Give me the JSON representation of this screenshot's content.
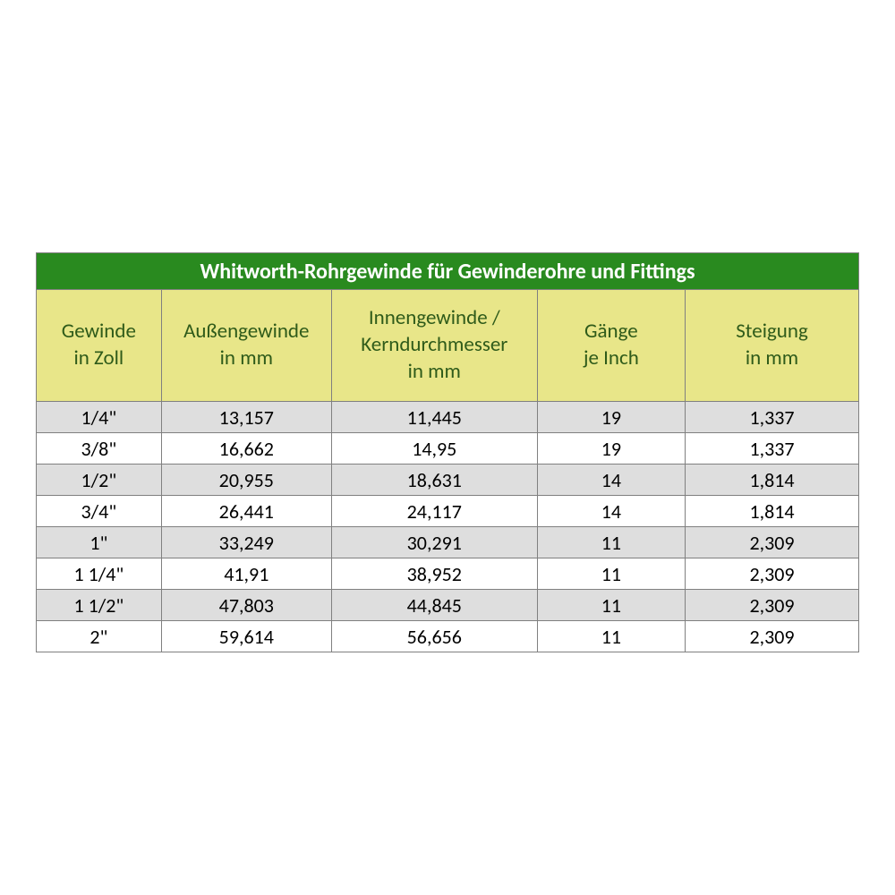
{
  "table": {
    "title": "Whitworth-Rohrgewinde für Gewinderohre und Fittings",
    "title_bg": "#298a1f",
    "title_color": "#ffffff",
    "header_bg": "#e8e689",
    "header_color": "#2f5b1a",
    "row_odd_bg": "#dedede",
    "row_even_bg": "#ffffff",
    "border_color": "#808080",
    "font_family": "Calibri",
    "title_fontsize": 24,
    "header_fontsize": 23,
    "cell_fontsize": 22,
    "column_widths_pct": [
      15.2,
      20.7,
      25.0,
      18.0,
      21.1
    ],
    "columns": [
      {
        "line1": "Gewinde",
        "line2": "in Zoll"
      },
      {
        "line1": "Außengewinde",
        "line2": "in mm"
      },
      {
        "line1": "Innengewinde /",
        "line2": "Kerndurchmesser",
        "line3": "in mm"
      },
      {
        "line1": "Gänge",
        "line2": "je Inch"
      },
      {
        "line1": "Steigung",
        "line2": "in mm"
      }
    ],
    "rows": [
      [
        "1/4\"",
        "13,157",
        "11,445",
        "19",
        "1,337"
      ],
      [
        "3/8\"",
        "16,662",
        "14,95",
        "19",
        "1,337"
      ],
      [
        "1/2\"",
        "20,955",
        "18,631",
        "14",
        "1,814"
      ],
      [
        "3/4\"",
        "26,441",
        "24,117",
        "14",
        "1,814"
      ],
      [
        "1\"",
        "33,249",
        "30,291",
        "11",
        "2,309"
      ],
      [
        "1 1/4\"",
        "41,91",
        "38,952",
        "11",
        "2,309"
      ],
      [
        "1 1/2\"",
        "47,803",
        "44,845",
        "11",
        "2,309"
      ],
      [
        "2\"",
        "59,614",
        "56,656",
        "11",
        "2,309"
      ]
    ]
  }
}
